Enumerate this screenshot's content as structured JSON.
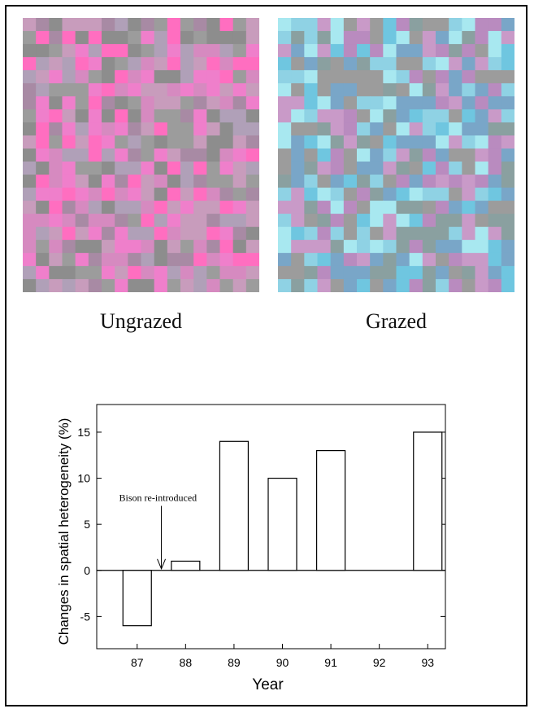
{
  "panels": {
    "ungrazed": {
      "label": "Ungrazed",
      "palette": [
        "#c89cbc",
        "#ff6ec0",
        "#9c9c9c",
        "#d68ac0",
        "#b0a0b8",
        "#ef7fcb",
        "#a88aa4",
        "#8d8d8d"
      ]
    },
    "grazed": {
      "label": "Grazed",
      "palette": [
        "#8fd2e4",
        "#9c9c9c",
        "#b98bbf",
        "#6fc6e0",
        "#a8e8f0",
        "#79a6c8",
        "#c99ac8",
        "#8aa0a0"
      ]
    }
  },
  "chart_data": {
    "type": "bar",
    "categories": [
      "87",
      "88",
      "89",
      "90",
      "91",
      "92",
      "93"
    ],
    "values": [
      -6,
      1,
      14,
      10,
      13,
      0,
      15
    ],
    "xlabel": "Year",
    "ylabel": "Changes in spatial heterogeneity (%)",
    "ylim": [
      -8.5,
      18
    ],
    "yticks": [
      -5,
      0,
      5,
      10,
      15
    ],
    "annotation": "Bison re-introduced",
    "bar_fill": "#ffffff",
    "bar_stroke": "#000000"
  }
}
